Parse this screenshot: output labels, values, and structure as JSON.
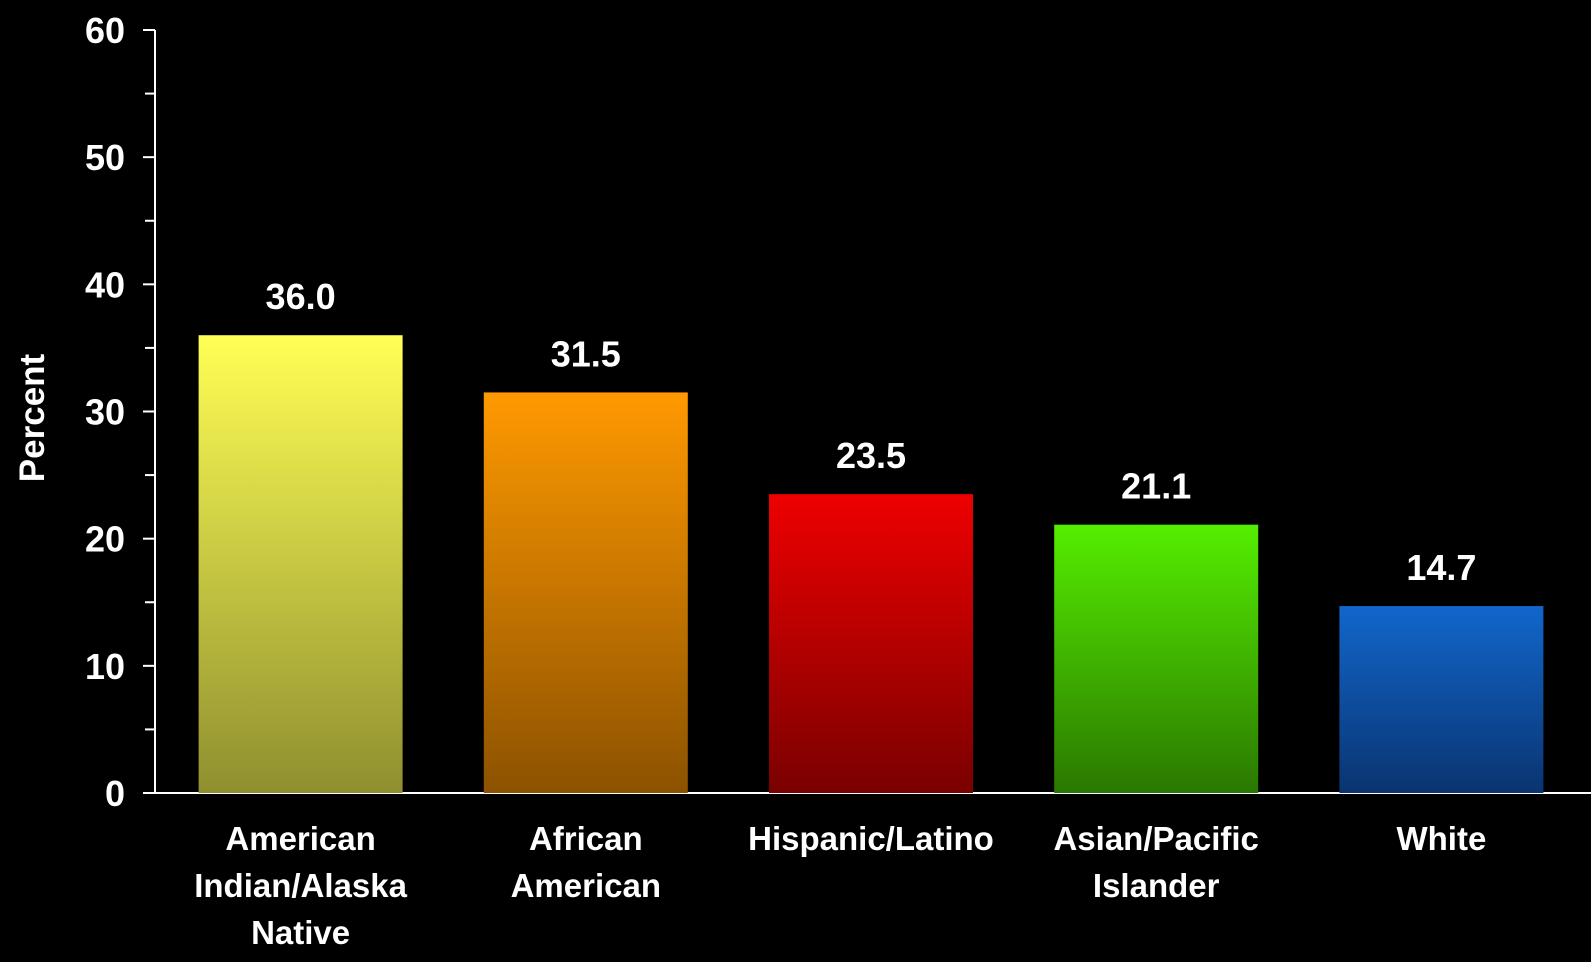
{
  "chart_data": {
    "type": "bar",
    "title": "",
    "xlabel": "",
    "ylabel": "Percent",
    "ylim": [
      0,
      60
    ],
    "yticks": [
      0,
      10,
      20,
      30,
      40,
      50,
      60
    ],
    "grid": false,
    "legend": "none",
    "categories": [
      [
        "American",
        "Indian/Alaska",
        "Native"
      ],
      [
        "African",
        "American"
      ],
      [
        "Hispanic/Latino"
      ],
      [
        "Asian/Pacific",
        "Islander"
      ],
      [
        "White"
      ]
    ],
    "values": [
      36.0,
      31.5,
      23.5,
      21.1,
      14.7
    ],
    "value_labels": [
      "36.0",
      "31.5",
      "23.5",
      "21.1",
      "14.7"
    ],
    "colors": [
      [
        "#ffff55",
        "#8f8f30"
      ],
      [
        "#ff9900",
        "#8c5200"
      ],
      [
        "#ee0000",
        "#7a0000"
      ],
      [
        "#55ee00",
        "#2a7800"
      ],
      [
        "#1166cc",
        "#0a3470"
      ]
    ],
    "background": "#000000",
    "axis_color": "#ffffff"
  }
}
